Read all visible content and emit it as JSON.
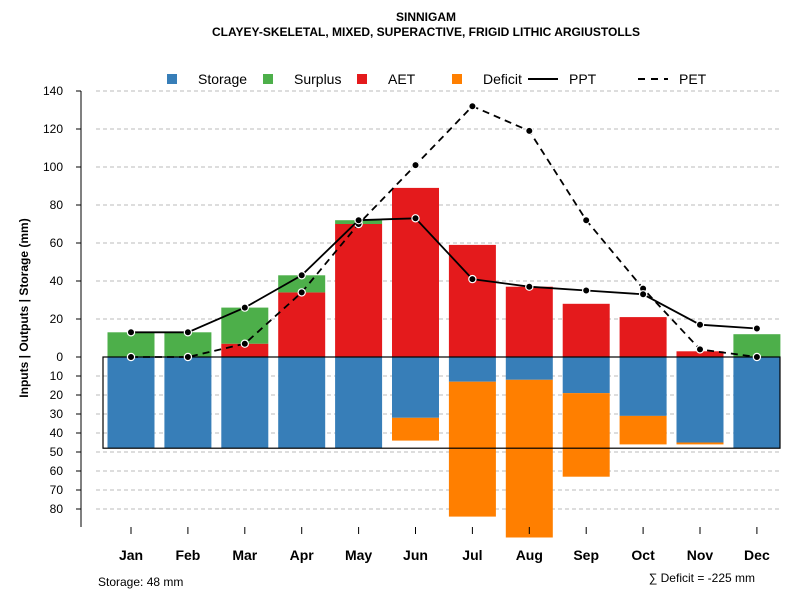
{
  "chart_data": {
    "type": "bar",
    "title": "SINNIGAM",
    "subtitle": "CLAYEY-SKELETAL, MIXED, SUPERACTIVE, FRIGID LITHIC ARGIUSTOLLS",
    "ylabel": "Inputs | Outputs | Storage    (mm)",
    "categories": [
      "Jan",
      "Feb",
      "Mar",
      "Apr",
      "May",
      "Jun",
      "Jul",
      "Aug",
      "Sep",
      "Oct",
      "Nov",
      "Dec"
    ],
    "ylim": [
      -90,
      140
    ],
    "positive_ticks": [
      "0",
      "20",
      "40",
      "60",
      "80",
      "100",
      "120",
      "140"
    ],
    "negative_ticks": [
      "10",
      "20",
      "30",
      "40",
      "50",
      "60",
      "70",
      "80"
    ],
    "legend": [
      {
        "name": "Storage",
        "key": "storage",
        "symbol": "square"
      },
      {
        "name": "Surplus",
        "key": "surplus",
        "symbol": "square"
      },
      {
        "name": "AET",
        "key": "aet",
        "symbol": "square"
      },
      {
        "name": "Deficit",
        "key": "deficit",
        "symbol": "square"
      },
      {
        "name": "PPT",
        "key": "ppt",
        "symbol": "solid"
      },
      {
        "name": "PET",
        "key": "pet",
        "symbol": "dashed"
      }
    ],
    "series": [
      {
        "name": "AET",
        "key": "aet",
        "values": [
          0,
          0,
          7,
          34,
          70,
          89,
          59,
          37,
          28,
          21,
          3,
          0
        ]
      },
      {
        "name": "Surplus",
        "key": "surplus",
        "values": [
          13,
          13,
          19,
          9,
          2,
          0,
          0,
          0,
          0,
          0,
          0,
          12
        ]
      },
      {
        "name": "Storage",
        "key": "storage",
        "values": [
          48,
          48,
          48,
          48,
          48,
          32,
          13,
          12,
          19,
          31,
          45,
          48
        ]
      },
      {
        "name": "Deficit",
        "key": "deficit",
        "values": [
          0,
          0,
          0,
          0,
          0,
          12,
          71,
          83,
          44,
          15,
          1,
          0
        ]
      },
      {
        "name": "PPT",
        "key": "ppt",
        "values": [
          13,
          13,
          26,
          43,
          72,
          73,
          41,
          37,
          35,
          33,
          17,
          15
        ]
      },
      {
        "name": "PET",
        "key": "pet",
        "values": [
          0,
          0,
          7,
          34,
          70,
          101,
          132,
          119,
          72,
          36,
          4,
          0
        ]
      }
    ],
    "storage_capacity": 48,
    "colors": {
      "storage": "#377EB8",
      "surplus": "#4DAF4A",
      "aet": "#E41A1C",
      "deficit": "#FF7F00",
      "line": "#000000",
      "grid": "#bbbbbb"
    },
    "footer_left": "Storage: 48 mm",
    "footer_right": "∑ Deficit = -225 mm"
  }
}
